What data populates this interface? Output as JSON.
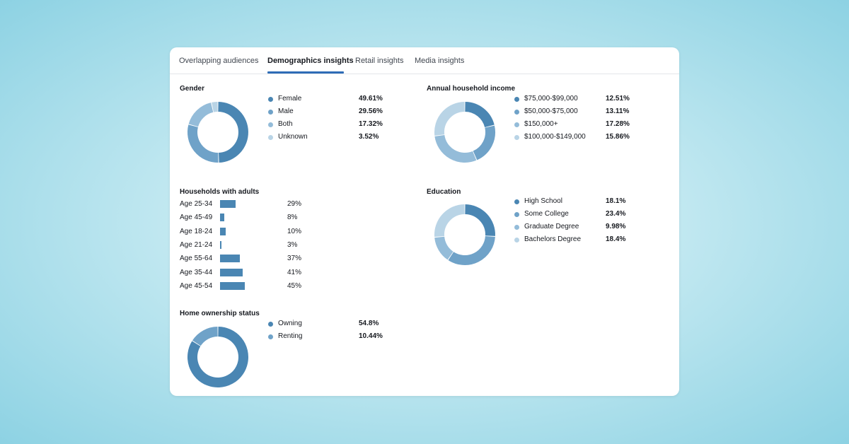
{
  "tabs": [
    {
      "label": "Overlapping audiences"
    },
    {
      "label": "Demographics insights"
    },
    {
      "label": "Retail insights"
    },
    {
      "label": "Media insights"
    }
  ],
  "colors": {
    "c1": "#4a86b3",
    "c2": "#6fa2c8",
    "c3": "#94bcd9",
    "c4": "#b9d4e6"
  },
  "gender": {
    "title": "Gender",
    "items": [
      {
        "label": "Female",
        "value": "49.61%",
        "num": 49.61
      },
      {
        "label": "Male",
        "value": "29.56%",
        "num": 29.56
      },
      {
        "label": "Both",
        "value": "17.32%",
        "num": 17.32
      },
      {
        "label": "Unknown",
        "value": "3.52%",
        "num": 3.52
      }
    ]
  },
  "income": {
    "title": "Annual household income",
    "items": [
      {
        "label": "$75,000-$99,000",
        "value": "12.51%",
        "num": 12.51
      },
      {
        "label": "$50,000-$75,000",
        "value": "13.11%",
        "num": 13.11
      },
      {
        "label": "$150,000+",
        "value": "17.28%",
        "num": 17.28
      },
      {
        "label": "$100,000-$149,000",
        "value": "15.86%",
        "num": 15.86
      }
    ]
  },
  "households": {
    "title": "Households with adults",
    "items": [
      {
        "label": "Age 25-34",
        "value": "29%",
        "num": 29
      },
      {
        "label": "Age 45-49",
        "value": "8%",
        "num": 8
      },
      {
        "label": "Age 18-24",
        "value": "10%",
        "num": 10
      },
      {
        "label": "Age 21-24",
        "value": "3%",
        "num": 3
      },
      {
        "label": "Age 55-64",
        "value": "37%",
        "num": 37
      },
      {
        "label": "Age 35-44",
        "value": "41%",
        "num": 41
      },
      {
        "label": "Age 45-54",
        "value": "45%",
        "num": 45
      }
    ]
  },
  "education": {
    "title": "Education",
    "items": [
      {
        "label": "High School",
        "value": "18.1%",
        "num": 18.1
      },
      {
        "label": "Some College",
        "value": "23.4%",
        "num": 23.4
      },
      {
        "label": "Graduate Degree",
        "value": "9.98%",
        "num": 9.98
      },
      {
        "label": "Bachelors Degree",
        "value": "18.4%",
        "num": 18.4
      }
    ]
  },
  "home": {
    "title": "Home ownership status",
    "items": [
      {
        "label": "Owning",
        "value": "54.8%",
        "num": 54.8
      },
      {
        "label": "Renting",
        "value": "10.44%",
        "num": 10.44
      }
    ]
  }
}
